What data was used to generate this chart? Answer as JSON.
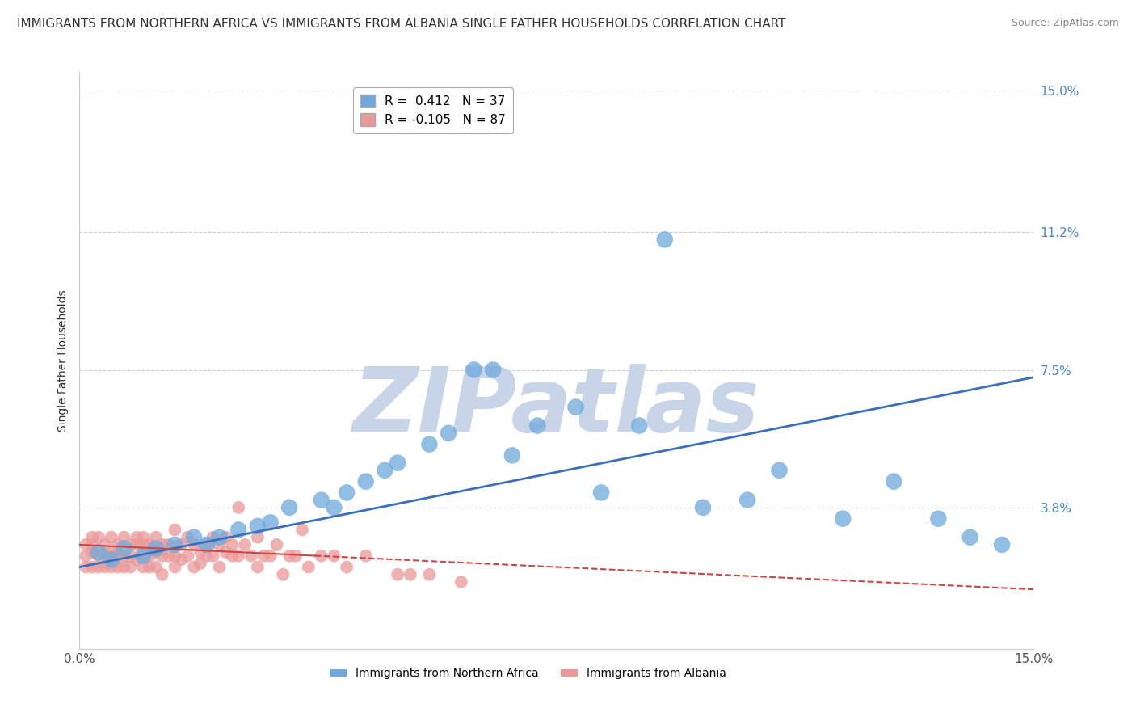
{
  "title": "IMMIGRANTS FROM NORTHERN AFRICA VS IMMIGRANTS FROM ALBANIA SINGLE FATHER HOUSEHOLDS CORRELATION CHART",
  "source": "Source: ZipAtlas.com",
  "ylabel": "Single Father Households",
  "xlim": [
    0.0,
    0.15
  ],
  "ylim": [
    0.0,
    0.155
  ],
  "yticks": [
    0.038,
    0.075,
    0.112,
    0.15
  ],
  "ytick_labels": [
    "3.8%",
    "7.5%",
    "11.2%",
    "15.0%"
  ],
  "xticks": [
    0.0,
    0.15
  ],
  "xtick_labels": [
    "0.0%",
    "15.0%"
  ],
  "r_blue": 0.412,
  "n_blue": 37,
  "r_pink": -0.105,
  "n_pink": 87,
  "color_blue": "#6fa8dc",
  "color_pink": "#ea9999",
  "line_color_blue": "#3a6fba",
  "line_color_pink": "#cc4444",
  "title_fontsize": 11,
  "axis_label_fontsize": 10,
  "tick_fontsize": 11,
  "legend_fontsize": 11,
  "watermark_text": "ZIPatlas",
  "watermark_color": "#c8d4e8",
  "background_color": "#ffffff",
  "blue_scatter_x": [
    0.003,
    0.005,
    0.007,
    0.01,
    0.012,
    0.015,
    0.018,
    0.02,
    0.022,
    0.025,
    0.028,
    0.03,
    0.033,
    0.038,
    0.04,
    0.042,
    0.045,
    0.048,
    0.05,
    0.055,
    0.058,
    0.062,
    0.065,
    0.068,
    0.072,
    0.078,
    0.082,
    0.088,
    0.092,
    0.098,
    0.105,
    0.11,
    0.12,
    0.128,
    0.135,
    0.14,
    0.145
  ],
  "blue_scatter_y": [
    0.026,
    0.024,
    0.027,
    0.025,
    0.027,
    0.028,
    0.03,
    0.028,
    0.03,
    0.032,
    0.033,
    0.034,
    0.038,
    0.04,
    0.038,
    0.042,
    0.045,
    0.048,
    0.05,
    0.055,
    0.058,
    0.075,
    0.075,
    0.052,
    0.06,
    0.065,
    0.042,
    0.06,
    0.11,
    0.038,
    0.04,
    0.048,
    0.035,
    0.045,
    0.035,
    0.03,
    0.028
  ],
  "pink_scatter_x": [
    0.001,
    0.001,
    0.001,
    0.002,
    0.002,
    0.002,
    0.002,
    0.003,
    0.003,
    0.003,
    0.004,
    0.004,
    0.004,
    0.005,
    0.005,
    0.005,
    0.005,
    0.006,
    0.006,
    0.006,
    0.007,
    0.007,
    0.007,
    0.008,
    0.008,
    0.008,
    0.009,
    0.009,
    0.009,
    0.01,
    0.01,
    0.01,
    0.01,
    0.011,
    0.011,
    0.011,
    0.012,
    0.012,
    0.012,
    0.013,
    0.013,
    0.013,
    0.014,
    0.014,
    0.015,
    0.015,
    0.015,
    0.016,
    0.016,
    0.017,
    0.017,
    0.018,
    0.018,
    0.019,
    0.019,
    0.02,
    0.02,
    0.021,
    0.021,
    0.022,
    0.022,
    0.023,
    0.023,
    0.024,
    0.024,
    0.025,
    0.025,
    0.026,
    0.027,
    0.028,
    0.028,
    0.029,
    0.03,
    0.031,
    0.032,
    0.033,
    0.034,
    0.035,
    0.036,
    0.038,
    0.04,
    0.042,
    0.045,
    0.05,
    0.052,
    0.055,
    0.06
  ],
  "pink_scatter_y": [
    0.025,
    0.028,
    0.022,
    0.03,
    0.026,
    0.022,
    0.028,
    0.025,
    0.03,
    0.022,
    0.028,
    0.025,
    0.022,
    0.03,
    0.026,
    0.022,
    0.025,
    0.028,
    0.025,
    0.022,
    0.03,
    0.025,
    0.022,
    0.028,
    0.025,
    0.022,
    0.03,
    0.028,
    0.024,
    0.028,
    0.025,
    0.022,
    0.03,
    0.028,
    0.025,
    0.022,
    0.03,
    0.026,
    0.022,
    0.028,
    0.025,
    0.02,
    0.028,
    0.025,
    0.032,
    0.025,
    0.022,
    0.028,
    0.024,
    0.03,
    0.025,
    0.028,
    0.022,
    0.026,
    0.023,
    0.028,
    0.025,
    0.03,
    0.025,
    0.028,
    0.022,
    0.03,
    0.026,
    0.028,
    0.025,
    0.038,
    0.025,
    0.028,
    0.025,
    0.03,
    0.022,
    0.025,
    0.025,
    0.028,
    0.02,
    0.025,
    0.025,
    0.032,
    0.022,
    0.025,
    0.025,
    0.022,
    0.025,
    0.02,
    0.02,
    0.02,
    0.018
  ],
  "blue_trend_x": [
    0.0,
    0.15
  ],
  "blue_trend_y_start": 0.022,
  "blue_trend_y_end": 0.073,
  "pink_trend_x": [
    0.0,
    0.15
  ],
  "pink_trend_y_start": 0.028,
  "pink_trend_y_end": 0.016
}
